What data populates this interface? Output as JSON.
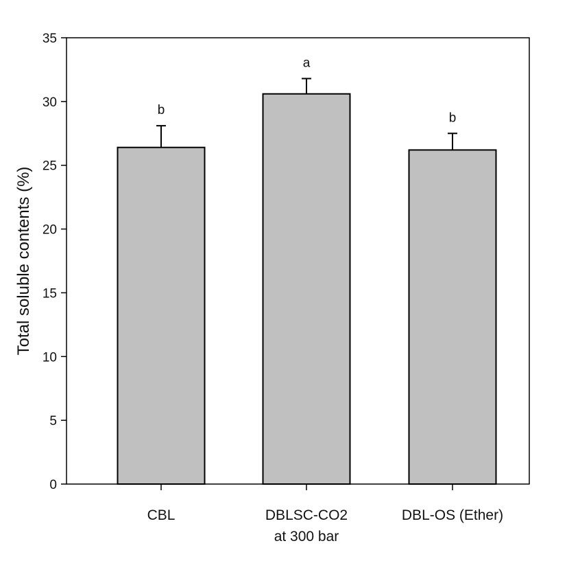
{
  "chart_data": {
    "type": "bar",
    "title": "",
    "xlabel": "",
    "ylabel": "Total soluble contents (%)",
    "ylim": [
      0,
      35
    ],
    "yticks": [
      "0",
      "5",
      "10",
      "15",
      "20",
      "25",
      "30",
      "35"
    ],
    "grid": false,
    "legend": "none",
    "categories": [
      [
        "CBL"
      ],
      [
        "DBLSC-CO2",
        "at 300 bar"
      ],
      [
        "DBL-OS (Ether)"
      ]
    ],
    "values": [
      26.4,
      30.6,
      26.2
    ],
    "errors": [
      1.7,
      1.2,
      1.3
    ],
    "letters": [
      "b",
      "a",
      "b"
    ],
    "colors": {
      "bar_fill": "#c0c0c0",
      "bar_stroke": "#000000",
      "axis": "#000000"
    }
  }
}
